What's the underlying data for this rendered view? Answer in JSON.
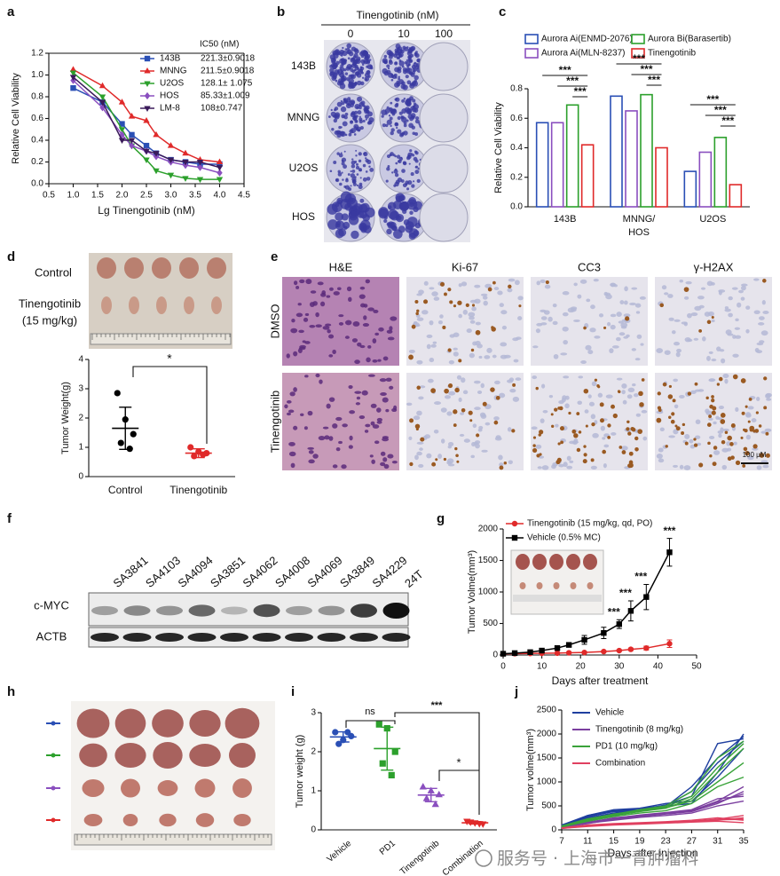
{
  "panel_labels": [
    "a",
    "b",
    "c",
    "d",
    "e",
    "f",
    "g",
    "h",
    "i",
    "j"
  ],
  "watermark": "服务号 · 上海市一青肿瘤科",
  "panel_b": {
    "header": "Tinengotinib (nM)",
    "columns": [
      "0",
      "10",
      "100"
    ],
    "rows": [
      "143B",
      "MNNG",
      "U2OS",
      "HOS"
    ]
  },
  "panel_d_photo": {
    "control_label": "Control",
    "treated_label": [
      "Tinengotinib",
      "(15 mg/kg)"
    ]
  },
  "panel_e": {
    "columns": [
      "H&E",
      "Ki-67",
      "CC3",
      "γ-H2AX"
    ],
    "rows": [
      "DMSO",
      "Tinengotinib"
    ],
    "scale_bar": "100 μM"
  },
  "panel_f": {
    "samples": [
      "SA3841",
      "SA4103",
      "SA4094",
      "SA3851",
      "SA4062",
      "SA4008",
      "SA4069",
      "SA3849",
      "SA4229",
      "24T"
    ],
    "sample_colors": [
      "#111",
      "#111",
      "#111",
      "#111",
      "#111",
      "#111",
      "#111",
      "#111",
      "#111",
      "#d02020"
    ],
    "bands": [
      "c-MYC",
      "ACTB"
    ]
  },
  "chart_data": [
    {
      "type": "line",
      "legend_title": "IC50 (nM)",
      "xlabel": "Lg Tinengotinib (nM)",
      "ylabel": "Relative Cell Viability",
      "x": [
        1.0,
        1.6,
        2.0,
        2.2,
        2.5,
        2.7,
        3.0,
        3.3,
        3.6,
        4.0
      ],
      "series": [
        {
          "name": "143B",
          "ic50": "221.3±0.9018",
          "color": "#2a4fb5",
          "marker": "square",
          "values": [
            0.88,
            0.75,
            0.55,
            0.45,
            0.35,
            0.28,
            0.22,
            0.2,
            0.18,
            0.18
          ]
        },
        {
          "name": "MNNG",
          "ic50": "211.5±0.9018",
          "color": "#e02a2a",
          "marker": "triangle",
          "values": [
            1.05,
            0.9,
            0.75,
            0.62,
            0.58,
            0.45,
            0.35,
            0.28,
            0.22,
            0.2
          ]
        },
        {
          "name": "U2OS",
          "ic50": "128.1± 1.075",
          "color": "#2ca02c",
          "marker": "triangle-down",
          "values": [
            1.02,
            0.8,
            0.5,
            0.35,
            0.22,
            0.12,
            0.08,
            0.05,
            0.04,
            0.04
          ]
        },
        {
          "name": "HOS",
          "ic50": "85.33±1.009",
          "color": "#8a4fbf",
          "marker": "diamond",
          "values": [
            0.95,
            0.7,
            0.45,
            0.35,
            0.3,
            0.25,
            0.2,
            0.17,
            0.15,
            0.1
          ]
        },
        {
          "name": "LM-8",
          "ic50": "108±0.747",
          "color": "#3a1a5a",
          "marker": "triangle-down",
          "values": [
            0.98,
            0.75,
            0.4,
            0.4,
            0.3,
            0.28,
            0.22,
            0.2,
            0.2,
            0.15
          ]
        }
      ],
      "xlim": [
        0.5,
        4.5
      ],
      "xticks": [
        0.5,
        {
          "value": 1,
          "label": "1.0"
        },
        1.5,
        {
          "value": 2,
          "label": "2.0"
        },
        2.5,
        {
          "value": 3,
          "label": "3.0"
        },
        3.5,
        {
          "value": 4,
          "label": "4.0"
        },
        4.5
      ],
      "ylim": [
        0,
        1.2
      ],
      "yticks": [
        {
          "value": 0,
          "label": "0.0"
        },
        0.2,
        0.4,
        0.6,
        0.8,
        {
          "value": 1,
          "label": "1.0"
        },
        1.2
      ]
    },
    {
      "type": "bar",
      "ylabel": "Relative Cell Viability",
      "categories": [
        "143B",
        "MNNG/HOS",
        "U2OS"
      ],
      "series": [
        {
          "name": "Aurora Ai(ENMD-2076)",
          "color": "#2a4fb5",
          "values": [
            0.57,
            0.75,
            0.24
          ]
        },
        {
          "name": "Aurora Ai(MLN-8237)",
          "color": "#8a4fbf",
          "values": [
            0.57,
            0.65,
            0.37
          ]
        },
        {
          "name": "Aurora Bi(Barasertib)",
          "color": "#2ca02c",
          "values": [
            0.69,
            0.76,
            0.47
          ]
        },
        {
          "name": "Tinengotinib",
          "color": "#e02a2a",
          "values": [
            0.42,
            0.4,
            0.15
          ]
        }
      ],
      "ylim": [
        0,
        0.8
      ],
      "yticks": [
        {
          "value": 0,
          "label": "0.0"
        },
        0.2,
        0.4,
        0.6,
        0.8
      ],
      "annotations": [
        "***",
        "***",
        "***",
        "***",
        "***",
        "***",
        "***",
        "***",
        "***"
      ]
    },
    {
      "type": "strip",
      "ylabel": "Tumor Weight(g)",
      "categories": [
        "Control",
        "Tinengotinib"
      ],
      "values": [
        [
          2.85,
          1.95,
          1.45,
          1.15,
          0.95
        ],
        [
          1.0,
          0.85,
          0.8,
          0.7,
          0.75
        ]
      ],
      "means": [
        1.65,
        0.8
      ],
      "sds": [
        0.72,
        0.15
      ],
      "colors": [
        "#000000",
        "#e02a2a"
      ],
      "markers": [
        "circle",
        "circle"
      ],
      "ylim": [
        0,
        4
      ],
      "yticks": [
        0,
        1,
        2,
        3,
        4
      ],
      "annotations": [
        "*"
      ]
    },
    {
      "type": "line",
      "xlabel": "Days after treatment",
      "ylabel": "Tumor Volme(mm³)",
      "x": [
        0,
        3,
        7,
        10,
        14,
        17,
        21,
        26,
        30,
        33,
        37,
        43
      ],
      "series": [
        {
          "name": "Tinengotinib (15 mg/kg, qd, PO)",
          "color": "#e02a2a",
          "marker": "circle",
          "values": [
            20,
            22,
            25,
            28,
            30,
            35,
            40,
            55,
            70,
            90,
            110,
            180
          ],
          "errors": [
            5,
            5,
            5,
            5,
            5,
            8,
            10,
            12,
            15,
            20,
            30,
            60
          ]
        },
        {
          "name": "Vehicle (0.5% MC)",
          "color": "#000000",
          "marker": "square",
          "values": [
            20,
            30,
            45,
            70,
            110,
            160,
            240,
            350,
            490,
            700,
            920,
            1630
          ],
          "errors": [
            5,
            5,
            10,
            15,
            20,
            30,
            70,
            90,
            70,
            160,
            200,
            220
          ]
        }
      ],
      "xlim": [
        0,
        50
      ],
      "xticks": [
        0,
        10,
        20,
        30,
        40,
        50
      ],
      "ylim": [
        0,
        2000
      ],
      "yticks": [
        0,
        500,
        1000,
        1500,
        2000
      ],
      "annotations": [
        "***",
        "***",
        "***",
        "***"
      ]
    },
    {
      "type": "strip",
      "ylabel": "Tumor weight (g)",
      "categories": [
        "Vehicle",
        "PD1",
        "Tinengotinib",
        "Combination"
      ],
      "values": [
        [
          2.5,
          2.3,
          2.4,
          2.2,
          2.5
        ],
        [
          2.7,
          2.6,
          2.0,
          1.7,
          1.4
        ],
        [
          1.1,
          1.0,
          0.9,
          0.8,
          0.65
        ],
        [
          0.22,
          0.18,
          0.15,
          0.2,
          0.16
        ]
      ],
      "means": [
        2.38,
        2.08,
        0.89,
        0.18
      ],
      "sds": [
        0.13,
        0.55,
        0.17,
        0.03
      ],
      "colors": [
        "#2a4fb5",
        "#2ca02c",
        "#8a4fbf",
        "#e02a2a"
      ],
      "markers": [
        "circle",
        "square",
        "triangle",
        "triangle-down"
      ],
      "ylim": [
        0,
        3
      ],
      "yticks": [
        0,
        1,
        2,
        3
      ],
      "annotations": [
        "ns",
        "***",
        "*"
      ]
    },
    {
      "type": "line",
      "xlabel": "Days after injection",
      "ylabel": "Tumor volme(mm³)",
      "x": [
        7,
        11,
        15,
        19,
        23,
        27,
        31,
        35
      ],
      "series": [
        {
          "name": "Vehicle",
          "color": "#1f3f9f",
          "values": [
            [
              100,
              300,
              400,
              420,
              500,
              550,
              1200,
              2000
            ],
            [
              90,
              280,
              380,
              400,
              480,
              900,
              1500,
              1950
            ],
            [
              100,
              250,
              350,
              420,
              520,
              700,
              1800,
              1900
            ],
            [
              80,
              300,
              420,
              450,
              550,
              600,
              1100,
              1700
            ],
            [
              100,
              270,
              390,
              450,
              500,
              800,
              1400,
              1850
            ]
          ]
        },
        {
          "name": "Tinengotinib (8 mg/kg)",
          "color": "#7b3f9f",
          "values": [
            [
              60,
              150,
              250,
              300,
              350,
              400,
              600,
              900
            ],
            [
              50,
              130,
              220,
              280,
              330,
              380,
              550,
              800
            ],
            [
              60,
              160,
              240,
              310,
              360,
              420,
              650,
              700
            ],
            [
              50,
              140,
              200,
              260,
              300,
              350,
              500,
              600
            ],
            [
              55,
              150,
              230,
              290,
              340,
              400,
              580,
              750
            ]
          ]
        },
        {
          "name": "PD1 (10 mg/kg)",
          "color": "#3aa33a",
          "values": [
            [
              80,
              220,
              330,
              400,
              480,
              700,
              1300,
              1800
            ],
            [
              70,
              200,
              300,
              380,
              450,
              650,
              1200,
              1700
            ],
            [
              80,
              230,
              320,
              420,
              500,
              800,
              1500,
              1850
            ],
            [
              60,
              180,
              280,
              350,
              400,
              550,
              900,
              1100
            ],
            [
              70,
              210,
              310,
              390,
              460,
              600,
              1000,
              1400
            ]
          ]
        },
        {
          "name": "Combination",
          "color": "#e04060",
          "values": [
            [
              40,
              90,
              120,
              140,
              160,
              180,
              220,
              300
            ],
            [
              30,
              80,
              110,
              130,
              150,
              170,
              200,
              250
            ],
            [
              40,
              100,
              130,
              150,
              170,
              200,
              250,
              200
            ],
            [
              30,
              70,
              100,
              120,
              140,
              160,
              180,
              150
            ],
            [
              35,
              85,
              115,
              135,
              155,
              175,
              210,
              220
            ]
          ]
        }
      ],
      "xlim": [
        7,
        35
      ],
      "xticks": [
        7,
        11,
        15,
        19,
        23,
        27,
        31,
        35
      ],
      "ylim": [
        0,
        2500
      ],
      "yticks": [
        0,
        500,
        1000,
        1500,
        2000,
        2500
      ]
    }
  ]
}
